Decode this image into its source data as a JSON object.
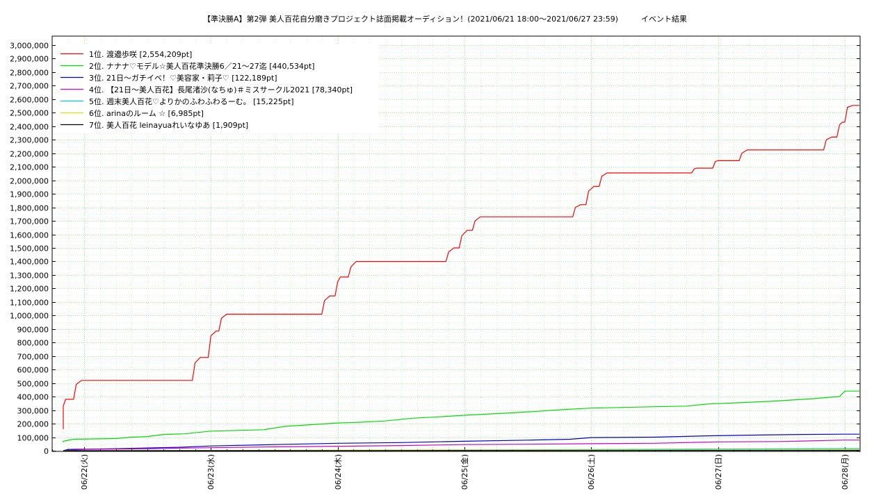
{
  "chart_data": {
    "type": "line",
    "title": "【準決勝A】第2弾 美人百花自分磨きプロジェクト誌面掲載オーディション！(2021/06/21 18:00～2021/06/27 23:59)　　　イベント結果",
    "xlabel": "",
    "ylabel": "",
    "ylim": [
      0,
      3000000
    ],
    "y_ticks": [
      0,
      100000,
      200000,
      300000,
      400000,
      500000,
      600000,
      700000,
      800000,
      900000,
      1000000,
      1100000,
      1200000,
      1300000,
      1400000,
      1500000,
      1600000,
      1700000,
      1800000,
      1900000,
      2000000,
      2100000,
      2200000,
      2300000,
      2400000,
      2500000,
      2600000,
      2700000,
      2800000,
      2900000,
      3000000
    ],
    "y_tick_labels": [
      "0",
      "100,000",
      "200,000",
      "300,000",
      "400,000",
      "500,000",
      "600,000",
      "700,000",
      "800,000",
      "900,000",
      "1,000,000",
      "1,100,000",
      "1,200,000",
      "1,300,000",
      "1,400,000",
      "1,500,000",
      "1,600,000",
      "1,700,000",
      "1,800,000",
      "1,900,000",
      "2,000,000",
      "2,100,000",
      "2,200,000",
      "2,300,000",
      "2,400,000",
      "2,500,000",
      "2,600,000",
      "2,700,000",
      "2,800,000",
      "2,900,000",
      "3,000,000"
    ],
    "xlim": [
      "2021-06-21 18:00",
      "2021-06-28 00:30"
    ],
    "x_ticks": [
      "2021-06-22 00:00",
      "2021-06-23 00:00",
      "2021-06-24 00:00",
      "2021-06-25 00:00",
      "2021-06-26 00:00",
      "2021-06-27 00:00",
      "2021-06-28 00:00"
    ],
    "x_tick_labels": [
      "06/22(火)",
      "06/23(水)",
      "06/24(木)",
      "06/25(金)",
      "06/26(土)",
      "06/27(日)",
      "06/28(月)"
    ],
    "grid": true,
    "legend_position": "top-left",
    "series": [
      {
        "name": "1位. 渡邉歩咲 [2,554,209pt]",
        "color": "#ff0000",
        "points": [
          [
            "2021-06-21 18:00",
            160000
          ],
          [
            "2021-06-21 19:00",
            160000
          ],
          [
            "2021-06-21 19:30",
            330000
          ],
          [
            "2021-06-21 20:30",
            380000
          ],
          [
            "2021-06-21 22:00",
            380000
          ],
          [
            "2021-06-21 22:30",
            490000
          ],
          [
            "2021-06-21 23:30",
            520000
          ],
          [
            "2021-06-22 20:30",
            520000
          ],
          [
            "2021-06-22 21:00",
            650000
          ],
          [
            "2021-06-22 22:00",
            690000
          ],
          [
            "2021-06-22 23:30",
            690000
          ],
          [
            "2021-06-23 00:00",
            850000
          ],
          [
            "2021-06-23 01:00",
            885000
          ],
          [
            "2021-06-23 01:30",
            885000
          ],
          [
            "2021-06-23 02:00",
            980000
          ],
          [
            "2021-06-23 03:00",
            1010000
          ],
          [
            "2021-06-23 21:00",
            1010000
          ],
          [
            "2021-06-23 21:30",
            1110000
          ],
          [
            "2021-06-23 22:30",
            1145000
          ],
          [
            "2021-06-23 23:30",
            1145000
          ],
          [
            "2021-06-24 00:00",
            1250000
          ],
          [
            "2021-06-24 00:30",
            1285000
          ],
          [
            "2021-06-24 02:00",
            1285000
          ],
          [
            "2021-06-24 02:30",
            1360000
          ],
          [
            "2021-06-24 03:30",
            1400000
          ],
          [
            "2021-06-24 20:30",
            1400000
          ],
          [
            "2021-06-24 21:00",
            1470000
          ],
          [
            "2021-06-24 22:00",
            1500000
          ],
          [
            "2021-06-24 23:00",
            1500000
          ],
          [
            "2021-06-24 23:30",
            1590000
          ],
          [
            "2021-06-25 00:30",
            1630000
          ],
          [
            "2021-06-25 01:30",
            1630000
          ],
          [
            "2021-06-25 02:00",
            1700000
          ],
          [
            "2021-06-25 03:00",
            1730000
          ],
          [
            "2021-06-25 20:30",
            1730000
          ],
          [
            "2021-06-25 21:00",
            1800000
          ],
          [
            "2021-06-25 22:00",
            1820000
          ],
          [
            "2021-06-25 23:00",
            1820000
          ],
          [
            "2021-06-25 23:30",
            1920000
          ],
          [
            "2021-06-26 00:30",
            1955000
          ],
          [
            "2021-06-26 01:30",
            1955000
          ],
          [
            "2021-06-26 02:00",
            2030000
          ],
          [
            "2021-06-26 03:00",
            2055000
          ],
          [
            "2021-06-26 19:00",
            2055000
          ],
          [
            "2021-06-26 19:30",
            2085000
          ],
          [
            "2021-06-26 20:00",
            2090000
          ],
          [
            "2021-06-26 23:00",
            2090000
          ],
          [
            "2021-06-26 23:30",
            2140000
          ],
          [
            "2021-06-27 00:00",
            2145000
          ],
          [
            "2021-06-27 04:00",
            2145000
          ],
          [
            "2021-06-27 04:30",
            2200000
          ],
          [
            "2021-06-27 05:30",
            2225000
          ],
          [
            "2021-06-27 20:00",
            2225000
          ],
          [
            "2021-06-27 20:30",
            2300000
          ],
          [
            "2021-06-27 21:30",
            2320000
          ],
          [
            "2021-06-27 22:30",
            2320000
          ],
          [
            "2021-06-27 23:00",
            2410000
          ],
          [
            "2021-06-27 23:30",
            2430000
          ],
          [
            "2021-06-28 00:00",
            2430000
          ],
          [
            "2021-06-28 00:30",
            2540000
          ],
          [
            "2021-06-28 01:30",
            2554209
          ],
          [
            "2021-06-28 03:00",
            2554209
          ]
        ]
      },
      {
        "name": "2位. ナナナ♡モデル☆美人百花準決勝6／21〜27迄 [440,534pt]",
        "color": "#00dd00",
        "points": [
          [
            "2021-06-21 18:00",
            60000
          ],
          [
            "2021-06-21 20:00",
            70000
          ],
          [
            "2021-06-21 22:00",
            85000
          ],
          [
            "2021-06-22 06:00",
            90000
          ],
          [
            "2021-06-22 09:00",
            100000
          ],
          [
            "2021-06-22 12:00",
            105000
          ],
          [
            "2021-06-22 15:00",
            120000
          ],
          [
            "2021-06-22 19:00",
            125000
          ],
          [
            "2021-06-23 00:00",
            145000
          ],
          [
            "2021-06-23 05:00",
            150000
          ],
          [
            "2021-06-23 10:00",
            155000
          ],
          [
            "2021-06-23 14:00",
            180000
          ],
          [
            "2021-06-23 18:00",
            190000
          ],
          [
            "2021-06-24 00:00",
            205000
          ],
          [
            "2021-06-24 04:00",
            210000
          ],
          [
            "2021-06-24 09:00",
            220000
          ],
          [
            "2021-06-24 14:00",
            240000
          ],
          [
            "2021-06-24 19:00",
            250000
          ],
          [
            "2021-06-25 00:00",
            262000
          ],
          [
            "2021-06-25 04:00",
            270000
          ],
          [
            "2021-06-25 09:00",
            280000
          ],
          [
            "2021-06-25 14:00",
            292000
          ],
          [
            "2021-06-25 19:00",
            305000
          ],
          [
            "2021-06-26 00:00",
            315000
          ],
          [
            "2021-06-26 06:00",
            320000
          ],
          [
            "2021-06-26 12:00",
            325000
          ],
          [
            "2021-06-26 18:00",
            330000
          ],
          [
            "2021-06-26 22:00",
            345000
          ],
          [
            "2021-06-27 04:00",
            355000
          ],
          [
            "2021-06-27 10:00",
            365000
          ],
          [
            "2021-06-27 14:00",
            375000
          ],
          [
            "2021-06-27 18:00",
            385000
          ],
          [
            "2021-06-27 21:00",
            395000
          ],
          [
            "2021-06-27 23:00",
            400000
          ],
          [
            "2021-06-28 00:00",
            440534
          ],
          [
            "2021-06-28 03:00",
            440534
          ]
        ]
      },
      {
        "name": "3位. 21日〜ガチイベ！♡美容家・莉子♡ [122,189pt]",
        "color": "#0000cc",
        "points": [
          [
            "2021-06-21 18:00",
            0
          ],
          [
            "2021-06-21 21:00",
            10000
          ],
          [
            "2021-06-22 06:00",
            15000
          ],
          [
            "2021-06-22 18:00",
            25000
          ],
          [
            "2021-06-23 00:00",
            35000
          ],
          [
            "2021-06-23 12:00",
            45000
          ],
          [
            "2021-06-24 00:00",
            55000
          ],
          [
            "2021-06-24 12:00",
            60000
          ],
          [
            "2021-06-25 00:00",
            70000
          ],
          [
            "2021-06-25 12:00",
            78000
          ],
          [
            "2021-06-25 20:00",
            85000
          ],
          [
            "2021-06-26 00:00",
            97000
          ],
          [
            "2021-06-26 12:00",
            100000
          ],
          [
            "2021-06-26 22:00",
            110000
          ],
          [
            "2021-06-27 06:00",
            115000
          ],
          [
            "2021-06-27 16:00",
            120000
          ],
          [
            "2021-06-28 00:00",
            122189
          ],
          [
            "2021-06-28 03:00",
            122189
          ]
        ]
      },
      {
        "name": "4位. 【21日〜美人百花】長尾渚沙(なちゅ)＃ミスサークル2021 [78,340pt]",
        "color": "#cc00cc",
        "points": [
          [
            "2021-06-21 18:00",
            0
          ],
          [
            "2021-06-22 00:00",
            10000
          ],
          [
            "2021-06-22 12:00",
            15000
          ],
          [
            "2021-06-23 00:00",
            22000
          ],
          [
            "2021-06-23 12:00",
            28000
          ],
          [
            "2021-06-24 00:00",
            33000
          ],
          [
            "2021-06-24 12:00",
            38000
          ],
          [
            "2021-06-25 00:00",
            45000
          ],
          [
            "2021-06-25 12:00",
            48000
          ],
          [
            "2021-06-26 00:00",
            52000
          ],
          [
            "2021-06-26 12:00",
            55000
          ],
          [
            "2021-06-27 00:00",
            65000
          ],
          [
            "2021-06-27 12:00",
            68000
          ],
          [
            "2021-06-28 00:00",
            78340
          ],
          [
            "2021-06-28 03:00",
            78340
          ]
        ]
      },
      {
        "name": "5位. 週末美人百花♡よりかのふわふわるーむ。 [15,225pt]",
        "color": "#00cccc",
        "points": [
          [
            "2021-06-21 18:00",
            0
          ],
          [
            "2021-06-24 00:00",
            2000
          ],
          [
            "2021-06-25 00:00",
            5000
          ],
          [
            "2021-06-26 00:00",
            8000
          ],
          [
            "2021-06-27 00:00",
            12000
          ],
          [
            "2021-06-28 00:00",
            15225
          ],
          [
            "2021-06-28 03:00",
            15225
          ]
        ]
      },
      {
        "name": "6位. arinaのルーム ☆ [6,985pt]",
        "color": "#dddd00",
        "points": [
          [
            "2021-06-21 18:00",
            0
          ],
          [
            "2021-06-23 00:00",
            2000
          ],
          [
            "2021-06-25 00:00",
            4000
          ],
          [
            "2021-06-27 00:00",
            6000
          ],
          [
            "2021-06-28 00:00",
            6985
          ],
          [
            "2021-06-28 03:00",
            6985
          ]
        ]
      },
      {
        "name": "7位. 美人百花 leinayuaれいなゆあ [1,909pt]",
        "color": "#000000",
        "points": [
          [
            "2021-06-21 18:00",
            0
          ],
          [
            "2021-06-24 00:00",
            1000
          ],
          [
            "2021-06-28 00:00",
            1909
          ],
          [
            "2021-06-28 03:00",
            1909
          ]
        ]
      }
    ]
  }
}
